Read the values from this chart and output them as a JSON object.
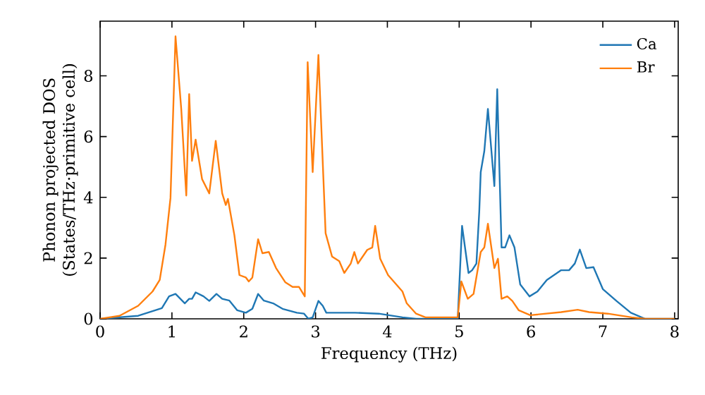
{
  "chart_data": {
    "type": "line",
    "xlabel": "Frequency (THz)",
    "ylabel": "Phonon projected DOS\n(States/THz·primitive cell)",
    "xlim": [
      0,
      8.05
    ],
    "ylim": [
      0,
      9.8
    ],
    "xticks": [
      0,
      1,
      2,
      3,
      4,
      5,
      6,
      7,
      8
    ],
    "yticks": [
      0,
      2,
      4,
      6,
      8
    ],
    "legend": "top right",
    "series": [
      {
        "name": "Ca",
        "color": "#1f77b4",
        "x": [
          0,
          0.53,
          0.86,
          0.96,
          1.05,
          1.18,
          1.24,
          1.28,
          1.33,
          1.44,
          1.52,
          1.62,
          1.7,
          1.8,
          1.91,
          2.03,
          2.12,
          2.2,
          2.28,
          2.41,
          2.54,
          2.74,
          2.84,
          2.9,
          2.96,
          3.04,
          3.1,
          3.15,
          3.3,
          3.55,
          3.88,
          4.21,
          4.4,
          4.98,
          5.04,
          5.13,
          5.18,
          5.24,
          5.28,
          5.3,
          5.35,
          5.4,
          5.49,
          5.53,
          5.59,
          5.64,
          5.7,
          5.77,
          5.85,
          5.98,
          6.09,
          6.22,
          6.42,
          6.53,
          6.61,
          6.68,
          6.77,
          6.87,
          7.0,
          7.19,
          7.39,
          7.59,
          8.0
        ],
        "values": [
          0,
          0.1,
          0.35,
          0.74,
          0.82,
          0.51,
          0.66,
          0.66,
          0.87,
          0.74,
          0.59,
          0.82,
          0.66,
          0.6,
          0.28,
          0.2,
          0.33,
          0.82,
          0.6,
          0.51,
          0.33,
          0.2,
          0.17,
          0.0,
          0.05,
          0.59,
          0.43,
          0.2,
          0.2,
          0.2,
          0.17,
          0.05,
          0,
          0,
          3.06,
          1.51,
          1.6,
          1.82,
          3.55,
          4.83,
          5.52,
          6.91,
          4.37,
          7.56,
          2.35,
          2.35,
          2.75,
          2.35,
          1.13,
          0.74,
          0.9,
          1.28,
          1.6,
          1.6,
          1.82,
          2.28,
          1.67,
          1.7,
          0.98,
          0.59,
          0.2,
          0,
          0
        ]
      },
      {
        "name": "Br",
        "color": "#ff7f0e",
        "x": [
          0,
          0.27,
          0.53,
          0.73,
          0.83,
          0.91,
          0.98,
          1.05,
          1.13,
          1.2,
          1.24,
          1.28,
          1.33,
          1.42,
          1.52,
          1.61,
          1.7,
          1.75,
          1.78,
          1.87,
          1.94,
          2.03,
          2.07,
          2.12,
          2.2,
          2.26,
          2.35,
          2.45,
          2.58,
          2.68,
          2.77,
          2.85,
          2.89,
          2.96,
          3.04,
          3.14,
          3.23,
          3.33,
          3.4,
          3.49,
          3.54,
          3.59,
          3.72,
          3.79,
          3.83,
          3.9,
          4.01,
          4.21,
          4.27,
          4.4,
          4.53,
          4.98,
          5.03,
          5.12,
          5.2,
          5.3,
          5.35,
          5.4,
          5.49,
          5.54,
          5.59,
          5.67,
          5.74,
          5.83,
          5.99,
          6.42,
          6.65,
          6.81,
          7.07,
          7.4,
          7.59,
          8.0
        ],
        "values": [
          0,
          0.1,
          0.43,
          0.9,
          1.28,
          2.44,
          3.98,
          9.3,
          6.9,
          4.06,
          7.4,
          5.2,
          5.9,
          4.6,
          4.13,
          5.86,
          4.13,
          3.75,
          3.95,
          2.75,
          1.44,
          1.36,
          1.23,
          1.36,
          2.62,
          2.16,
          2.2,
          1.67,
          1.2,
          1.05,
          1.05,
          0.74,
          8.45,
          4.83,
          8.69,
          2.82,
          2.05,
          1.9,
          1.51,
          1.82,
          2.2,
          1.82,
          2.27,
          2.35,
          3.06,
          1.98,
          1.44,
          0.9,
          0.51,
          0.17,
          0.05,
          0.05,
          1.23,
          0.66,
          0.82,
          2.2,
          2.35,
          3.13,
          1.67,
          1.98,
          0.66,
          0.74,
          0.59,
          0.28,
          0.12,
          0.22,
          0.3,
          0.22,
          0.17,
          0.05,
          0,
          0
        ]
      }
    ]
  }
}
